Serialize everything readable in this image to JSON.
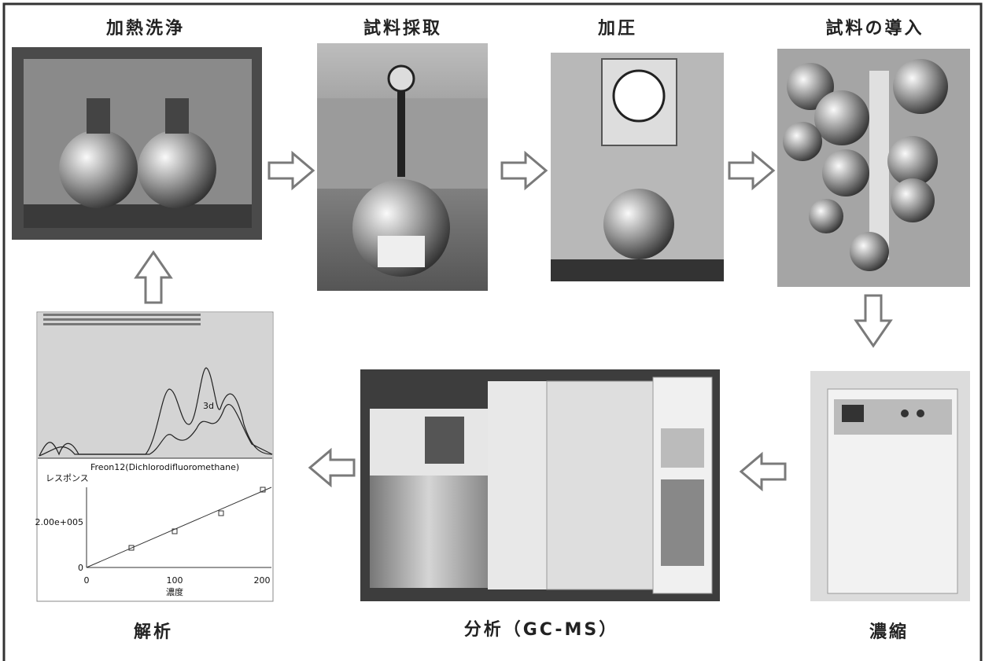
{
  "steps": [
    {
      "label": "加熱洗浄"
    },
    {
      "label": "試料採取"
    },
    {
      "label": "加圧"
    },
    {
      "label": "試料の導入"
    },
    {
      "label": "濃縮"
    },
    {
      "label": "分析（GC-MS）"
    },
    {
      "label": "解析"
    }
  ],
  "analysis_chart": {
    "peak_label": "3d",
    "title": "Freon12(Dichlorodifluoromethane)",
    "y_label": "レスポンス",
    "y_ticks": [
      "2.00e+005",
      "0"
    ],
    "x_ticks": [
      "0",
      "100",
      "200"
    ],
    "x_label": "濃度"
  }
}
